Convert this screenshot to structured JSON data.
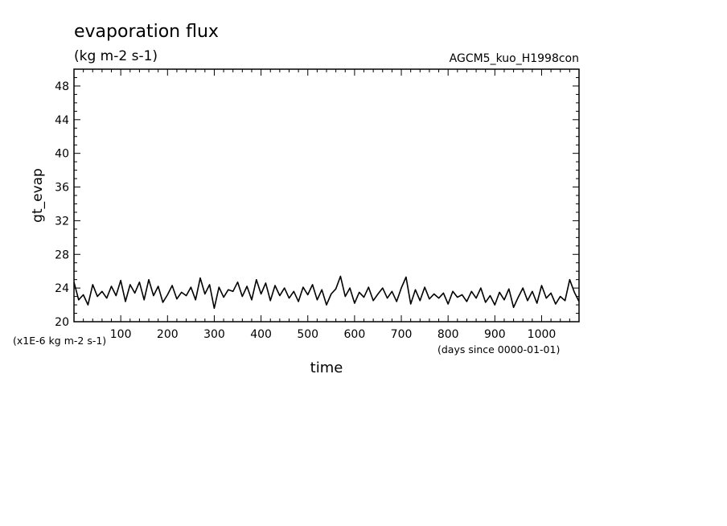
{
  "chart_data": {
    "type": "line",
    "title": "evaporation flux",
    "subtitle": "(kg m-2 s-1)",
    "experiment": "AGCM5_kuo_H1998con",
    "xlabel": "time",
    "ylabel": "gt_evap",
    "y_scale_note": "(x1E-6 kg m-2 s-1)",
    "x_unit_note": "(days since 0000-01-01)",
    "xlim": [
      0,
      1080
    ],
    "ylim": [
      20,
      50
    ],
    "x_ticks": [
      100,
      200,
      300,
      400,
      500,
      600,
      700,
      800,
      900,
      1000
    ],
    "y_ticks": [
      20,
      24,
      28,
      32,
      36,
      40,
      44,
      48
    ],
    "grid": false,
    "line_color": "#000000",
    "series": [
      {
        "x": [
          0,
          10,
          20,
          30,
          40,
          50,
          60,
          70,
          80,
          90,
          100,
          110,
          120,
          130,
          140,
          150,
          160,
          170,
          180,
          190,
          200,
          210,
          220,
          230,
          240,
          250,
          260,
          270,
          280,
          290,
          300,
          310,
          320,
          330,
          340,
          350,
          360,
          370,
          380,
          390,
          400,
          410,
          420,
          430,
          440,
          450,
          460,
          470,
          480,
          490,
          500,
          510,
          520,
          530,
          540,
          550,
          560,
          570,
          580,
          590,
          600,
          610,
          620,
          630,
          640,
          650,
          660,
          670,
          680,
          690,
          700,
          710,
          720,
          730,
          740,
          750,
          760,
          770,
          780,
          790,
          800,
          810,
          820,
          830,
          840,
          850,
          860,
          870,
          880,
          890,
          900,
          910,
          920,
          930,
          940,
          950,
          960,
          970,
          980,
          990,
          1000,
          1010,
          1020,
          1030,
          1040,
          1050,
          1060,
          1070,
          1080
        ],
        "y": [
          24.7,
          22.6,
          23.2,
          22.0,
          24.4,
          23.0,
          23.6,
          22.8,
          24.2,
          23.1,
          24.9,
          22.4,
          24.4,
          23.4,
          24.7,
          22.6,
          25.0,
          23.1,
          24.2,
          22.3,
          23.2,
          24.3,
          22.7,
          23.5,
          23.1,
          24.1,
          22.6,
          25.2,
          23.3,
          24.4,
          21.6,
          24.1,
          22.9,
          23.8,
          23.6,
          24.7,
          23.0,
          24.2,
          22.6,
          25.0,
          23.3,
          24.6,
          22.5,
          24.3,
          23.1,
          24.0,
          22.8,
          23.6,
          22.4,
          24.1,
          23.2,
          24.4,
          22.6,
          23.8,
          22.0,
          23.3,
          23.9,
          25.4,
          23.0,
          24.0,
          22.2,
          23.5,
          22.9,
          24.1,
          22.5,
          23.3,
          24.0,
          22.8,
          23.6,
          22.4,
          24.0,
          25.3,
          22.1,
          23.8,
          22.5,
          24.1,
          22.7,
          23.3,
          22.8,
          23.4,
          22.1,
          23.6,
          22.9,
          23.2,
          22.4,
          23.6,
          22.8,
          24.0,
          22.3,
          23.1,
          22.0,
          23.5,
          22.6,
          23.9,
          21.7,
          22.9,
          24.0,
          22.5,
          23.6,
          22.2,
          24.3,
          22.8,
          23.4,
          22.1,
          23.0,
          22.5,
          25.0,
          23.5,
          22.4
        ]
      }
    ]
  }
}
